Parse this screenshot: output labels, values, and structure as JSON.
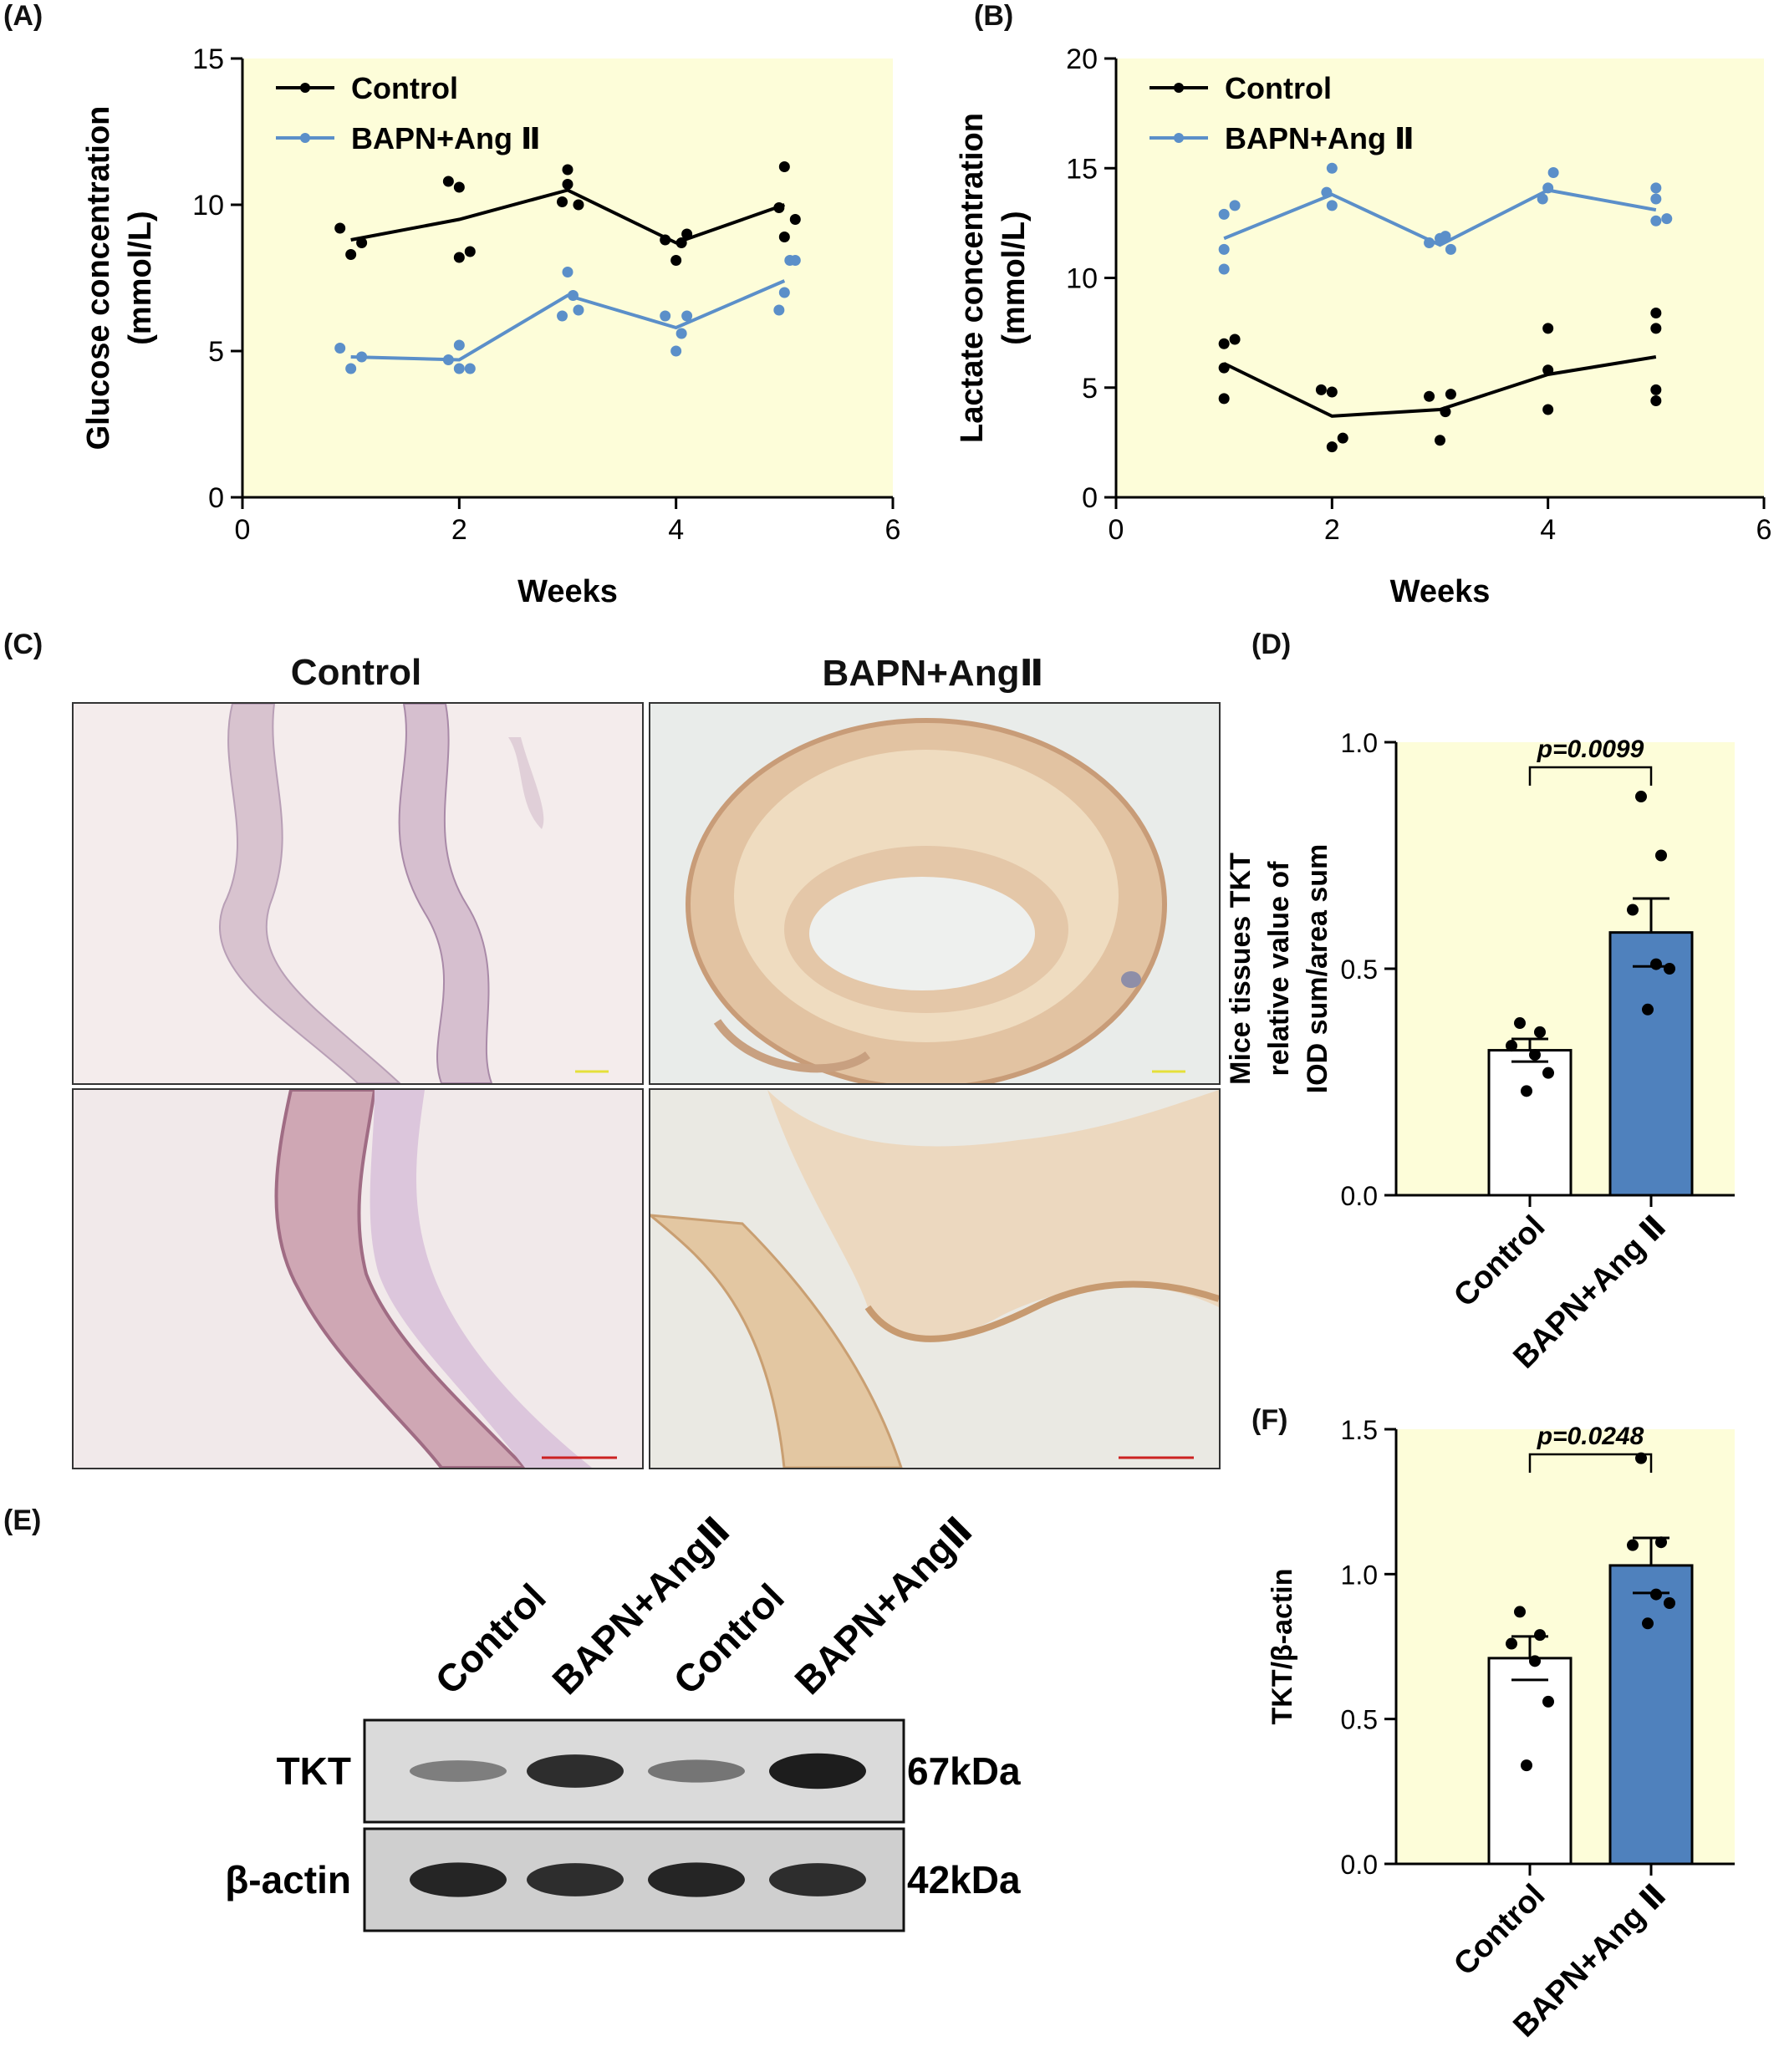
{
  "panels": {
    "A": "(A)",
    "B": "(B)",
    "C": "(C)",
    "D": "(D)",
    "E": "(E)",
    "F": "(F)"
  },
  "colors": {
    "control": "#000000",
    "treated": "#5b8fc9",
    "plot_bg": "#fdfdd9",
    "bar_treated": "#4f81bd",
    "bar_control": "#ffffff"
  },
  "ihc": {
    "col_titles": [
      "Control",
      "BAPN+AngⅡ"
    ],
    "images": [
      {
        "name": "ihc-control-low-mag",
        "bg": "#f4ecec"
      },
      {
        "name": "ihc-bapn-low-mag",
        "bg": "#e9ecea"
      },
      {
        "name": "ihc-control-high-mag",
        "bg": "#f1e9ea"
      },
      {
        "name": "ihc-bapn-high-mag",
        "bg": "#eae9e3"
      }
    ]
  },
  "western_blot": {
    "lanes": [
      "Control",
      "BAPN+AngⅡ",
      "Control",
      "BAPN+AngⅡ"
    ],
    "rows": [
      {
        "protein": "TKT",
        "size": "67kDa",
        "intensities": [
          0.35,
          0.85,
          0.4,
          0.95
        ]
      },
      {
        "protein": "β-actin",
        "size": "42kDa",
        "intensities": [
          0.9,
          0.85,
          0.9,
          0.85
        ]
      }
    ]
  },
  "chart_data": [
    {
      "panel": "A",
      "type": "scatter",
      "xlabel": "Weeks",
      "ylabel": [
        "Glucose concentration",
        "(mmol/L)"
      ],
      "xlim": [
        0,
        6
      ],
      "ylim": [
        0,
        15
      ],
      "xticks": [
        0,
        2,
        4,
        6
      ],
      "yticks": [
        0,
        5,
        10,
        15
      ],
      "legend": "top-left",
      "series": [
        {
          "name": "Control",
          "color": "#000000",
          "points": [
            [
              0.9,
              9.2
            ],
            [
              1.0,
              8.3
            ],
            [
              1.1,
              8.7
            ],
            [
              1.9,
              10.8
            ],
            [
              2.0,
              10.6
            ],
            [
              2.0,
              8.2
            ],
            [
              2.1,
              8.4
            ],
            [
              3.0,
              11.2
            ],
            [
              3.0,
              10.7
            ],
            [
              2.95,
              10.1
            ],
            [
              3.1,
              10.0
            ],
            [
              3.9,
              8.8
            ],
            [
              4.0,
              8.1
            ],
            [
              4.05,
              8.7
            ],
            [
              4.1,
              9.0
            ],
            [
              5.0,
              11.3
            ],
            [
              4.95,
              9.9
            ],
            [
              5.0,
              8.9
            ],
            [
              5.1,
              9.5
            ]
          ],
          "mean": [
            [
              1.0,
              8.8
            ],
            [
              2.0,
              9.5
            ],
            [
              3.0,
              10.5
            ],
            [
              4.0,
              8.7
            ],
            [
              5.0,
              10.0
            ]
          ]
        },
        {
          "name": "BAPN+Ang Ⅱ",
          "color": "#5b8fc9",
          "points": [
            [
              0.9,
              5.1
            ],
            [
              1.0,
              4.4
            ],
            [
              1.1,
              4.8
            ],
            [
              1.9,
              4.7
            ],
            [
              2.0,
              5.2
            ],
            [
              2.0,
              4.4
            ],
            [
              2.1,
              4.4
            ],
            [
              3.0,
              7.7
            ],
            [
              2.95,
              6.2
            ],
            [
              3.1,
              6.4
            ],
            [
              3.05,
              6.9
            ],
            [
              3.9,
              6.2
            ],
            [
              4.0,
              5.0
            ],
            [
              4.05,
              5.6
            ],
            [
              4.1,
              6.2
            ],
            [
              5.0,
              7.0
            ],
            [
              4.95,
              6.4
            ],
            [
              5.05,
              8.1
            ],
            [
              5.1,
              8.1
            ]
          ],
          "mean": [
            [
              1.0,
              4.8
            ],
            [
              2.0,
              4.7
            ],
            [
              3.0,
              6.9
            ],
            [
              4.0,
              5.8
            ],
            [
              5.0,
              7.4
            ]
          ]
        }
      ]
    },
    {
      "panel": "B",
      "type": "scatter",
      "xlabel": "Weeks",
      "ylabel": [
        "Lactate concentration",
        "(mmol/L)"
      ],
      "xlim": [
        0,
        6
      ],
      "ylim": [
        0,
        20
      ],
      "xticks": [
        0,
        2,
        4,
        6
      ],
      "yticks": [
        0,
        5,
        10,
        15,
        20
      ],
      "legend": "top-left",
      "series": [
        {
          "name": "Control",
          "color": "#000000",
          "points": [
            [
              1.0,
              7.0
            ],
            [
              1.1,
              7.2
            ],
            [
              1.0,
              5.9
            ],
            [
              1.0,
              4.5
            ],
            [
              1.9,
              4.9
            ],
            [
              2.0,
              4.8
            ],
            [
              2.0,
              2.3
            ],
            [
              2.1,
              2.7
            ],
            [
              2.9,
              4.6
            ],
            [
              3.0,
              2.6
            ],
            [
              3.1,
              4.7
            ],
            [
              3.05,
              3.9
            ],
            [
              4.0,
              7.7
            ],
            [
              4.0,
              5.8
            ],
            [
              4.0,
              4.0
            ],
            [
              5.0,
              8.4
            ],
            [
              5.0,
              7.7
            ],
            [
              5.0,
              4.9
            ],
            [
              5.0,
              4.4
            ]
          ],
          "mean": [
            [
              1.0,
              6.1
            ],
            [
              2.0,
              3.7
            ],
            [
              3.0,
              4.0
            ],
            [
              4.0,
              5.6
            ],
            [
              5.0,
              6.4
            ]
          ]
        },
        {
          "name": "BAPN+Ang Ⅱ",
          "color": "#5b8fc9",
          "points": [
            [
              1.0,
              12.9
            ],
            [
              1.1,
              13.3
            ],
            [
              1.0,
              11.3
            ],
            [
              1.0,
              10.4
            ],
            [
              2.0,
              15.0
            ],
            [
              1.95,
              13.9
            ],
            [
              2.0,
              13.3
            ],
            [
              2.9,
              11.6
            ],
            [
              3.0,
              11.8
            ],
            [
              3.1,
              11.3
            ],
            [
              3.05,
              11.9
            ],
            [
              3.95,
              13.6
            ],
            [
              4.05,
              14.8
            ],
            [
              4.0,
              14.1
            ],
            [
              5.0,
              14.1
            ],
            [
              5.0,
              13.6
            ],
            [
              5.0,
              12.6
            ],
            [
              5.1,
              12.7
            ]
          ],
          "mean": [
            [
              1.0,
              11.8
            ],
            [
              2.0,
              13.8
            ],
            [
              3.0,
              11.5
            ],
            [
              4.0,
              14.0
            ],
            [
              5.0,
              13.1
            ]
          ]
        }
      ]
    },
    {
      "panel": "D",
      "type": "bar",
      "ylabel": [
        "Mice tissues TKT",
        "relative value of",
        "IOD sum/area sum"
      ],
      "ylim": [
        0,
        1.0
      ],
      "yticks": [
        "0.0",
        "0.5",
        "1.0"
      ],
      "categories": [
        "Control",
        "BAPN+Ang Ⅱ"
      ],
      "values": [
        0.32,
        0.58
      ],
      "sem": [
        0.025,
        0.075
      ],
      "points": [
        [
          0.38,
          0.36,
          0.33,
          0.31,
          0.27,
          0.23
        ],
        [
          0.88,
          0.75,
          0.63,
          0.51,
          0.5,
          0.41
        ]
      ],
      "significance": "p=0.0099"
    },
    {
      "panel": "F",
      "type": "bar",
      "ylabel": [
        "TKT/β-actin"
      ],
      "ylim": [
        0,
        1.5
      ],
      "yticks": [
        "0.0",
        "0.5",
        "1.0",
        "1.5"
      ],
      "categories": [
        "Control",
        "BAPN+Ang Ⅱ"
      ],
      "values": [
        0.71,
        1.03
      ],
      "sem": [
        0.075,
        0.095
      ],
      "points": [
        [
          0.87,
          0.79,
          0.76,
          0.7,
          0.56,
          0.34
        ],
        [
          1.4,
          1.11,
          1.1,
          0.93,
          0.9,
          0.83
        ]
      ],
      "significance": "p=0.0248"
    }
  ]
}
